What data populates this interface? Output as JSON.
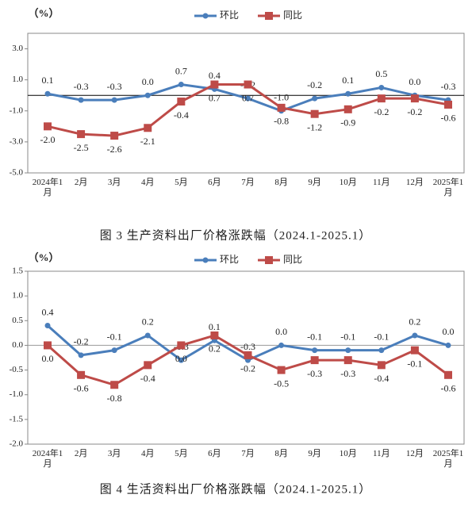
{
  "chart_data": [
    {
      "type": "line",
      "title": "图 3 生产资料出厂价格涨跌幅（2024.1-2025.1）",
      "y_label": "（%）",
      "categories": [
        "2024年1月",
        "2月",
        "3月",
        "4月",
        "5月",
        "6月",
        "7月",
        "8月",
        "9月",
        "10月",
        "11月",
        "12月",
        "2025年1月"
      ],
      "series": [
        {
          "name": "环比",
          "color": "#4a7ebb",
          "values": [
            0.1,
            -0.3,
            -0.3,
            0,
            0.7,
            0.4,
            -0.2,
            -1.0,
            -0.2,
            0.1,
            0.5,
            0,
            -0.3
          ],
          "value_labels": [
            "0.1",
            "-0.3",
            "-0.3",
            "0.0",
            "0.7",
            "0.4",
            "-0.2",
            "-1.0",
            "-0.2",
            "0.1",
            "0.5",
            "0.0",
            "-0.3"
          ]
        },
        {
          "name": "同比",
          "color": "#be4b48",
          "values": [
            -2.0,
            -2.5,
            -2.6,
            -2.1,
            -0.4,
            0.7,
            0.7,
            -0.8,
            -1.2,
            -0.9,
            -0.2,
            -0.2,
            -0.6
          ],
          "value_labels": [
            "-2.0",
            "-2.5",
            "-2.6",
            "-2.1",
            "-0.4",
            "0.7",
            "0.7",
            "-0.8",
            "-1.2",
            "-0.9",
            "-0.2",
            "-0.2",
            "-0.6"
          ]
        }
      ],
      "ylim": [
        -5,
        4
      ],
      "yticks": [
        {
          "value": -5,
          "label": "-5.0"
        },
        {
          "value": -3,
          "label": "-3.0"
        },
        {
          "value": -1,
          "label": "-1.0"
        },
        {
          "value": 1,
          "label": "1.0"
        },
        {
          "value": 3,
          "label": "3.0"
        }
      ]
    },
    {
      "type": "line",
      "title": "图 4 生活资料出厂价格涨跌幅（2024.1-2025.1）",
      "y_label": "（%）",
      "categories": [
        "2024年1月",
        "2月",
        "3月",
        "4月",
        "5月",
        "6月",
        "7月",
        "8月",
        "9月",
        "10月",
        "11月",
        "12月",
        "2025年1月"
      ],
      "series": [
        {
          "name": "环比",
          "color": "#4a7ebb",
          "values": [
            0.4,
            -0.2,
            -0.1,
            0.2,
            -0.3,
            0.1,
            -0.3,
            0,
            -0.1,
            -0.1,
            -0.1,
            0.2,
            0
          ],
          "value_labels": [
            "0.4",
            "-0.2",
            "-0.1",
            "0.2",
            "-0.3",
            "0.1",
            "-0.3",
            "0.0",
            "-0.1",
            "-0.1",
            "-0.1",
            "0.2",
            "0.0"
          ]
        },
        {
          "name": "同比",
          "color": "#be4b48",
          "values": [
            0,
            -0.6,
            -0.8,
            -0.4,
            0,
            0.2,
            -0.2,
            -0.5,
            -0.3,
            -0.3,
            -0.4,
            -0.1,
            -0.6
          ],
          "value_labels": [
            "0.0",
            "-0.6",
            "-0.8",
            "-0.4",
            "0.0",
            "0.2",
            "-0.2",
            "-0.5",
            "-0.3",
            "-0.3",
            "-0.4",
            "-0.1",
            "-0.6"
          ]
        }
      ],
      "ylim": [
        -2,
        1.5
      ],
      "yticks": [
        {
          "value": -2,
          "label": "-2.0"
        },
        {
          "value": -1.5,
          "label": "-1.5"
        },
        {
          "value": -1,
          "label": "-1.0"
        },
        {
          "value": -0.5,
          "label": "-0.5"
        },
        {
          "value": 0,
          "label": "0.0"
        },
        {
          "value": 0.5,
          "label": "0.5"
        },
        {
          "value": 1,
          "label": "1.0"
        },
        {
          "value": 1.5,
          "label": "1.5"
        }
      ]
    }
  ]
}
